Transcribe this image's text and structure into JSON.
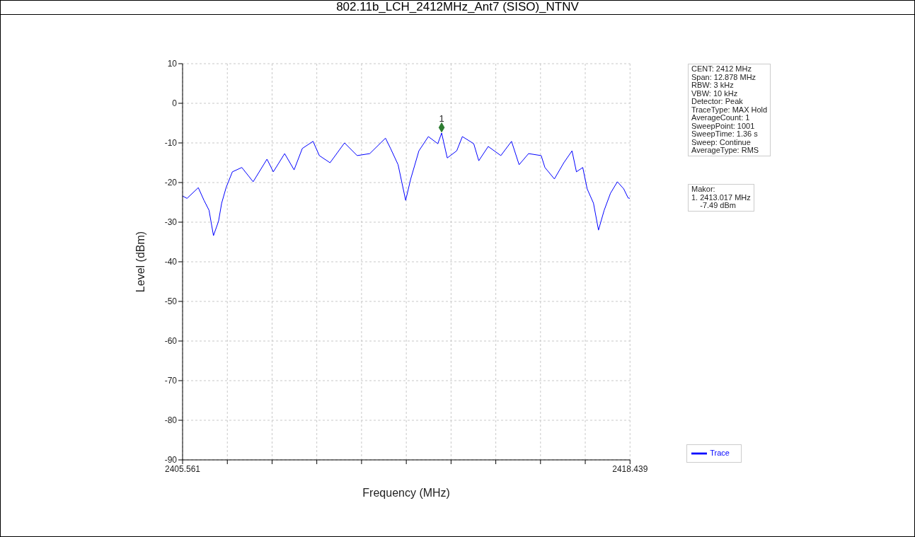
{
  "chart_data": {
    "type": "line",
    "title": "802.11b_LCH_2412MHz_Ant7 (SISO)_NTNV",
    "xlabel": "Frequency (MHz)",
    "ylabel": "Level (dBm)",
    "xlim": [
      2405.561,
      2418.439
    ],
    "xticks": [
      2405.561,
      {
        "value": 2406.849,
        "label": null
      },
      {
        "value": 2408.137,
        "label": null
      },
      {
        "value": 2409.424,
        "label": null
      },
      {
        "value": 2410.712,
        "label": null
      },
      {
        "value": 2412.0,
        "label": null
      },
      {
        "value": 2413.288,
        "label": null
      },
      {
        "value": 2414.576,
        "label": null
      },
      {
        "value": 2415.863,
        "label": null
      },
      {
        "value": 2417.151,
        "label": null
      },
      2418.439
    ],
    "ylim": [
      -90,
      10
    ],
    "yticks": [
      10,
      0,
      -10,
      -20,
      -30,
      -40,
      -50,
      -60,
      -70,
      -80,
      -90
    ],
    "grid": true,
    "legend": "bottom right",
    "series": [
      {
        "name": "Trace",
        "color": "#0000ff",
        "marker": "none",
        "x": [
          2405.561,
          2405.688,
          2406.014,
          2406.178,
          2406.323,
          2406.45,
          2406.595,
          2406.686,
          2406.813,
          2406.994,
          2407.266,
          2407.592,
          2407.991,
          2408.173,
          2408.499,
          2408.771,
          2409.007,
          2409.316,
          2409.497,
          2409.805,
          2410.222,
          2410.585,
          2410.948,
          2411.401,
          2411.547,
          2411.764,
          2411.982,
          2412.127,
          2412.363,
          2412.635,
          2412.907,
          2413.017,
          2413.179,
          2413.451,
          2413.614,
          2413.941,
          2414.086,
          2414.358,
          2414.721,
          2415.029,
          2415.247,
          2415.519,
          2415.882,
          2415.99,
          2416.262,
          2416.534,
          2416.77,
          2416.897,
          2417.079,
          2417.206,
          2417.387,
          2417.532,
          2417.695,
          2417.877,
          2418.076,
          2418.258,
          2418.385,
          2418.439
        ],
        "values": [
          -23.4,
          -24,
          -21.3,
          -24.5,
          -27,
          -33.4,
          -29.8,
          -25.2,
          -21.3,
          -17.3,
          -16.2,
          -19.8,
          -14.1,
          -17.3,
          -12.7,
          -16.8,
          -11.4,
          -9.6,
          -13.2,
          -15,
          -10,
          -13.2,
          -12.7,
          -8.8,
          -11.4,
          -15.5,
          -24.5,
          -19.1,
          -12,
          -8.4,
          -10.2,
          -7.5,
          -13.8,
          -12,
          -8.4,
          -10.2,
          -14.5,
          -10.9,
          -13.2,
          -9.6,
          -15.5,
          -12.7,
          -13.2,
          -16.2,
          -19.1,
          -15,
          -12,
          -17.3,
          -16.2,
          -21.6,
          -25.2,
          -32,
          -27,
          -22.7,
          -19.8,
          -21.6,
          -23.9,
          -24
        ]
      },
      {
        "name": "1",
        "type": "scatter",
        "color": "#2e7d32",
        "marker": "diamond",
        "x": [
          2413.017
        ],
        "values": [
          -6.1
        ]
      }
    ],
    "annotations": [
      "CENT: 2412 MHz\nSpan: 12.878 MHz\nRBW: 3 kHz\nVBW: 10 kHz\nDetector: Peak\nTraceType: MAX Hold\nAverageCount: 1\nSweepPoint: 1001\nSweepTime: 1.36 s\nSweep: Continue\nAverageType: RMS",
      "Makor:\n1. 2413.017 MHz\n    -7.49 dBm"
    ]
  }
}
